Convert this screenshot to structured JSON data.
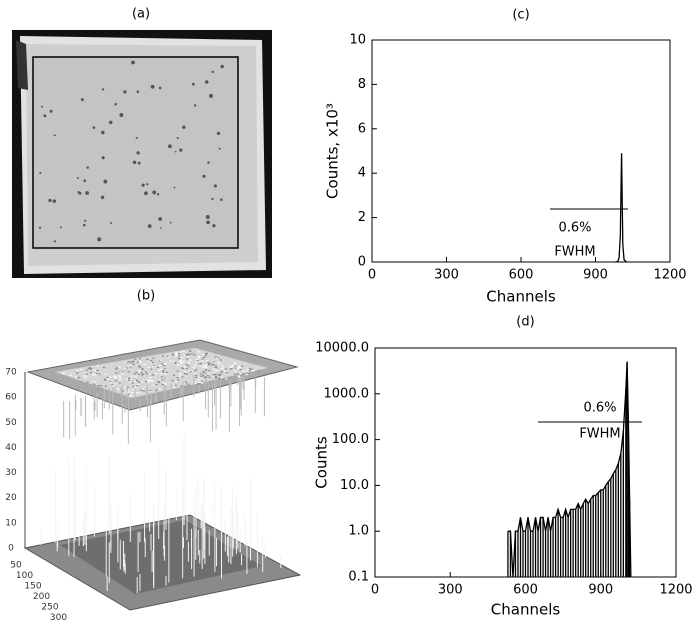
{
  "image_panel": {
    "label": "(a)"
  },
  "surface_panel": {
    "label": "(b)",
    "z_ticks": [
      0,
      10,
      20,
      30,
      40,
      50,
      60,
      70
    ],
    "xy_ticks": [
      50,
      100,
      150,
      200,
      250,
      300
    ]
  },
  "chart_data": [
    {
      "type": "line",
      "title": "(c)",
      "x_label": "Channels",
      "y_label": "Counts, x10³",
      "annotations": [
        "0.6%",
        "FWHM"
      ],
      "color": "#000000",
      "x": [
        980,
        990,
        995,
        1000,
        1003,
        1005,
        1007,
        1010,
        1015,
        1025
      ],
      "values": [
        0,
        0.02,
        0.2,
        1.2,
        3.5,
        4.9,
        3.2,
        0.8,
        0.1,
        0
      ],
      "xlim": [
        0,
        1200
      ],
      "xticks": [
        0,
        300,
        600,
        900,
        1200
      ],
      "ylim": [
        0,
        10
      ],
      "yticks": [
        0,
        2,
        4,
        6,
        8,
        10
      ]
    },
    {
      "type": "line",
      "title": "(d)",
      "x_label": "Channels",
      "y_label": "Counts",
      "annotations": [
        "0.6%",
        "FWHM"
      ],
      "color": "#000000",
      "log_y": true,
      "drop_lines": true,
      "x": [
        530,
        540,
        550,
        560,
        570,
        580,
        590,
        600,
        610,
        620,
        630,
        640,
        650,
        660,
        670,
        680,
        690,
        700,
        710,
        720,
        730,
        740,
        750,
        760,
        770,
        780,
        790,
        800,
        810,
        820,
        830,
        840,
        850,
        860,
        870,
        880,
        890,
        900,
        910,
        920,
        930,
        940,
        950,
        960,
        970,
        980,
        990,
        1000,
        1005,
        1010,
        1015,
        1020
      ],
      "values": [
        1,
        1,
        0.1,
        1,
        1,
        2,
        1,
        1,
        2,
        1,
        1,
        2,
        1,
        2,
        2,
        1,
        2,
        1,
        2,
        2,
        3,
        2,
        2,
        3,
        2,
        3,
        3,
        3,
        4,
        3,
        4,
        5,
        4,
        5,
        6,
        6,
        7,
        8,
        8,
        10,
        12,
        14,
        18,
        22,
        30,
        50,
        150,
        1200,
        5000,
        300,
        5,
        0.1
      ],
      "xlim": [
        0,
        1200
      ],
      "xticks": [
        0,
        300,
        600,
        900,
        1200
      ],
      "ylim": [
        0.1,
        10000
      ],
      "yticks": [
        0.1,
        {
          "value": 1,
          "label": "1.0"
        },
        {
          "value": 10,
          "label": "10.0"
        },
        {
          "value": 100,
          "label": "100.0"
        },
        {
          "value": 1000,
          "label": "1000.0"
        },
        {
          "value": 10000,
          "label": "10000.0"
        }
      ]
    }
  ]
}
